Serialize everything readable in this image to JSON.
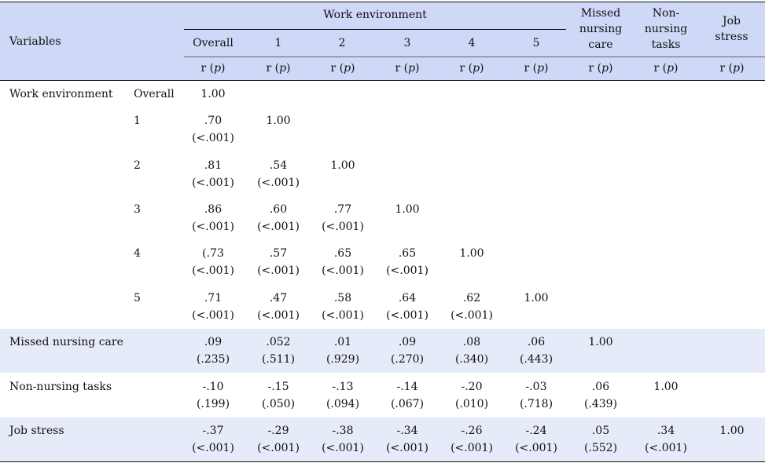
{
  "header": {
    "variables": "Variables",
    "work_environment": "Work environment",
    "cols": [
      "Overall",
      "1",
      "2",
      "3",
      "4",
      "5"
    ],
    "missed_nursing_care": [
      "Missed",
      "nursing",
      "care"
    ],
    "non_nursing_tasks": [
      "Non-",
      "nursing",
      "tasks"
    ],
    "job_stress": [
      "Job",
      "stress"
    ],
    "stat_r": "r (",
    "stat_p": "p",
    "stat_close": ")"
  },
  "rows": [
    {
      "label": "Work environment",
      "sub": "Overall",
      "cells": [
        [
          "1.00",
          ""
        ]
      ]
    },
    {
      "label": "",
      "sub": "1",
      "cells": [
        [
          ".70",
          "(<.001)"
        ],
        [
          "1.00",
          ""
        ]
      ]
    },
    {
      "label": "",
      "sub": "2",
      "cells": [
        [
          ".81",
          "(<.001)"
        ],
        [
          ".54",
          "(<.001)"
        ],
        [
          "1.00",
          ""
        ]
      ]
    },
    {
      "label": "",
      "sub": "3",
      "cells": [
        [
          ".86",
          "(<.001)"
        ],
        [
          ".60",
          "(<.001)"
        ],
        [
          ".77",
          "(<.001)"
        ],
        [
          "1.00",
          ""
        ]
      ]
    },
    {
      "label": "",
      "sub": "4",
      "cells": [
        [
          "(.73",
          "(<.001)"
        ],
        [
          ".57",
          "(<.001)"
        ],
        [
          ".65",
          "(<.001)"
        ],
        [
          ".65",
          "(<.001)"
        ],
        [
          "1.00",
          ""
        ]
      ]
    },
    {
      "label": "",
      "sub": "5",
      "cells": [
        [
          ".71",
          "(<.001)"
        ],
        [
          ".47",
          "(<.001)"
        ],
        [
          ".58",
          "(<.001)"
        ],
        [
          ".64",
          "(<.001)"
        ],
        [
          ".62",
          "(<.001)"
        ],
        [
          "1.00",
          ""
        ]
      ]
    },
    {
      "label": "Missed nursing care",
      "sub": "",
      "cells": [
        [
          ".09",
          "(.235)"
        ],
        [
          ".052",
          "(.511)"
        ],
        [
          ".01",
          "(.929)"
        ],
        [
          ".09",
          "(.270)"
        ],
        [
          ".08",
          "(.340)"
        ],
        [
          ".06",
          "(.443)"
        ],
        [
          "1.00",
          ""
        ]
      ]
    },
    {
      "label": "Non-nursing tasks",
      "sub": "",
      "cells": [
        [
          "-.10",
          "(.199)"
        ],
        [
          "-.15",
          "(.050)"
        ],
        [
          "-.13",
          "(.094)"
        ],
        [
          "-.14",
          "(.067)"
        ],
        [
          "-.20",
          "(.010)"
        ],
        [
          "-.03",
          "(.718)"
        ],
        [
          ".06",
          "(.439)"
        ],
        [
          "1.00",
          ""
        ]
      ]
    },
    {
      "label": "Job stress",
      "sub": "",
      "cells": [
        [
          "-.37",
          "(<.001)"
        ],
        [
          "-.29",
          "(<.001)"
        ],
        [
          "-.38",
          "(<.001)"
        ],
        [
          "-.34",
          "(<.001)"
        ],
        [
          "-.26",
          "(<.001)"
        ],
        [
          "-.24",
          "(<.001)"
        ],
        [
          ".05",
          "(.552)"
        ],
        [
          ".34",
          "(<.001)"
        ],
        [
          "1.00",
          ""
        ]
      ]
    }
  ],
  "colors": {
    "header_bg": "#cfd8f6",
    "stripe_bg": "#e6ebfa",
    "rule": "#111111"
  }
}
